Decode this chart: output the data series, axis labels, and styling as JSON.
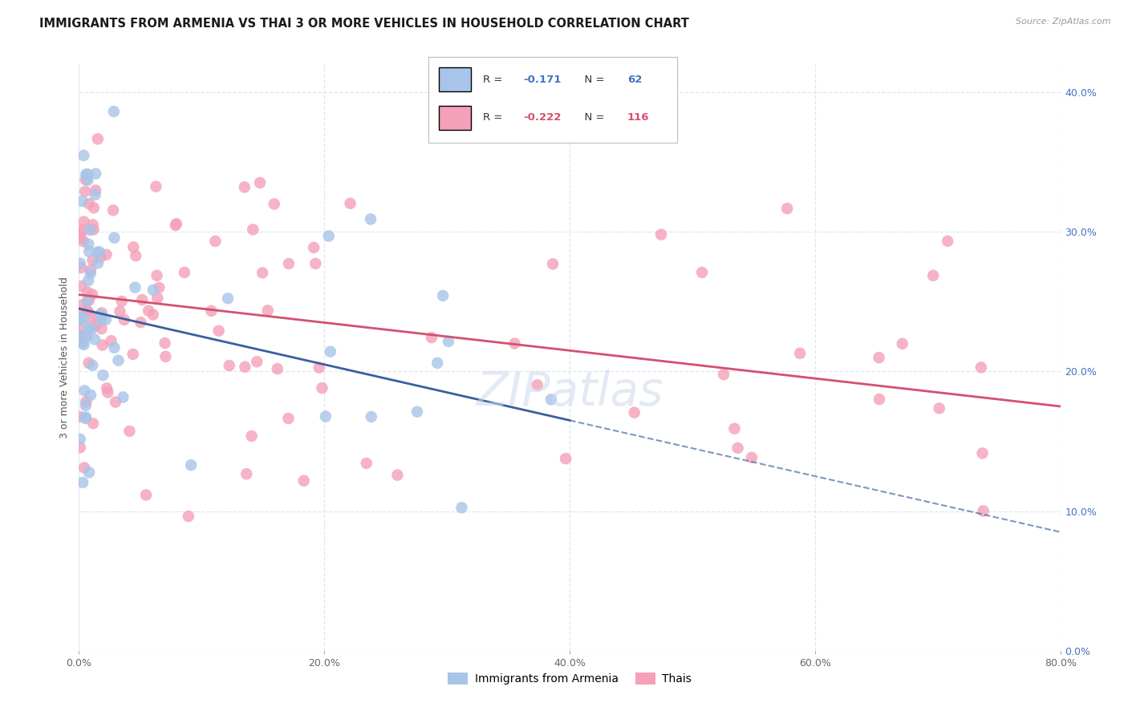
{
  "title": "IMMIGRANTS FROM ARMENIA VS THAI 3 OR MORE VEHICLES IN HOUSEHOLD CORRELATION CHART",
  "source": "Source: ZipAtlas.com",
  "ylabel": "3 or more Vehicles in Household",
  "legend_armenia_R": "-0.171",
  "legend_armenia_N": "62",
  "legend_thai_R": "-0.222",
  "legend_thai_N": "116",
  "legend_label_armenia": "Immigrants from Armenia",
  "legend_label_thai": "Thais",
  "armenia_color": "#a8c4e8",
  "thai_color": "#f4a0b8",
  "armenia_line_color": "#3a5fa0",
  "thai_line_color": "#d45070",
  "xlim": [
    0,
    80
  ],
  "ylim": [
    0,
    42
  ],
  "xticks": [
    0,
    20,
    40,
    60,
    80
  ],
  "yticks": [
    0,
    10,
    20,
    30,
    40
  ],
  "background_color": "#ffffff",
  "grid_color": "#dde4f0",
  "watermark_color": "#ccd8ee",
  "arm_line_x0": 0.0,
  "arm_line_x1": 40.0,
  "arm_line_y0": 24.5,
  "arm_line_y1": 16.5,
  "arm_dash_x0": 40.0,
  "arm_dash_x1": 80.0,
  "arm_dash_y0": 16.5,
  "arm_dash_y1": 8.5,
  "thai_line_x0": 0.0,
  "thai_line_x1": 80.0,
  "thai_line_y0": 25.5,
  "thai_line_y1": 17.5
}
